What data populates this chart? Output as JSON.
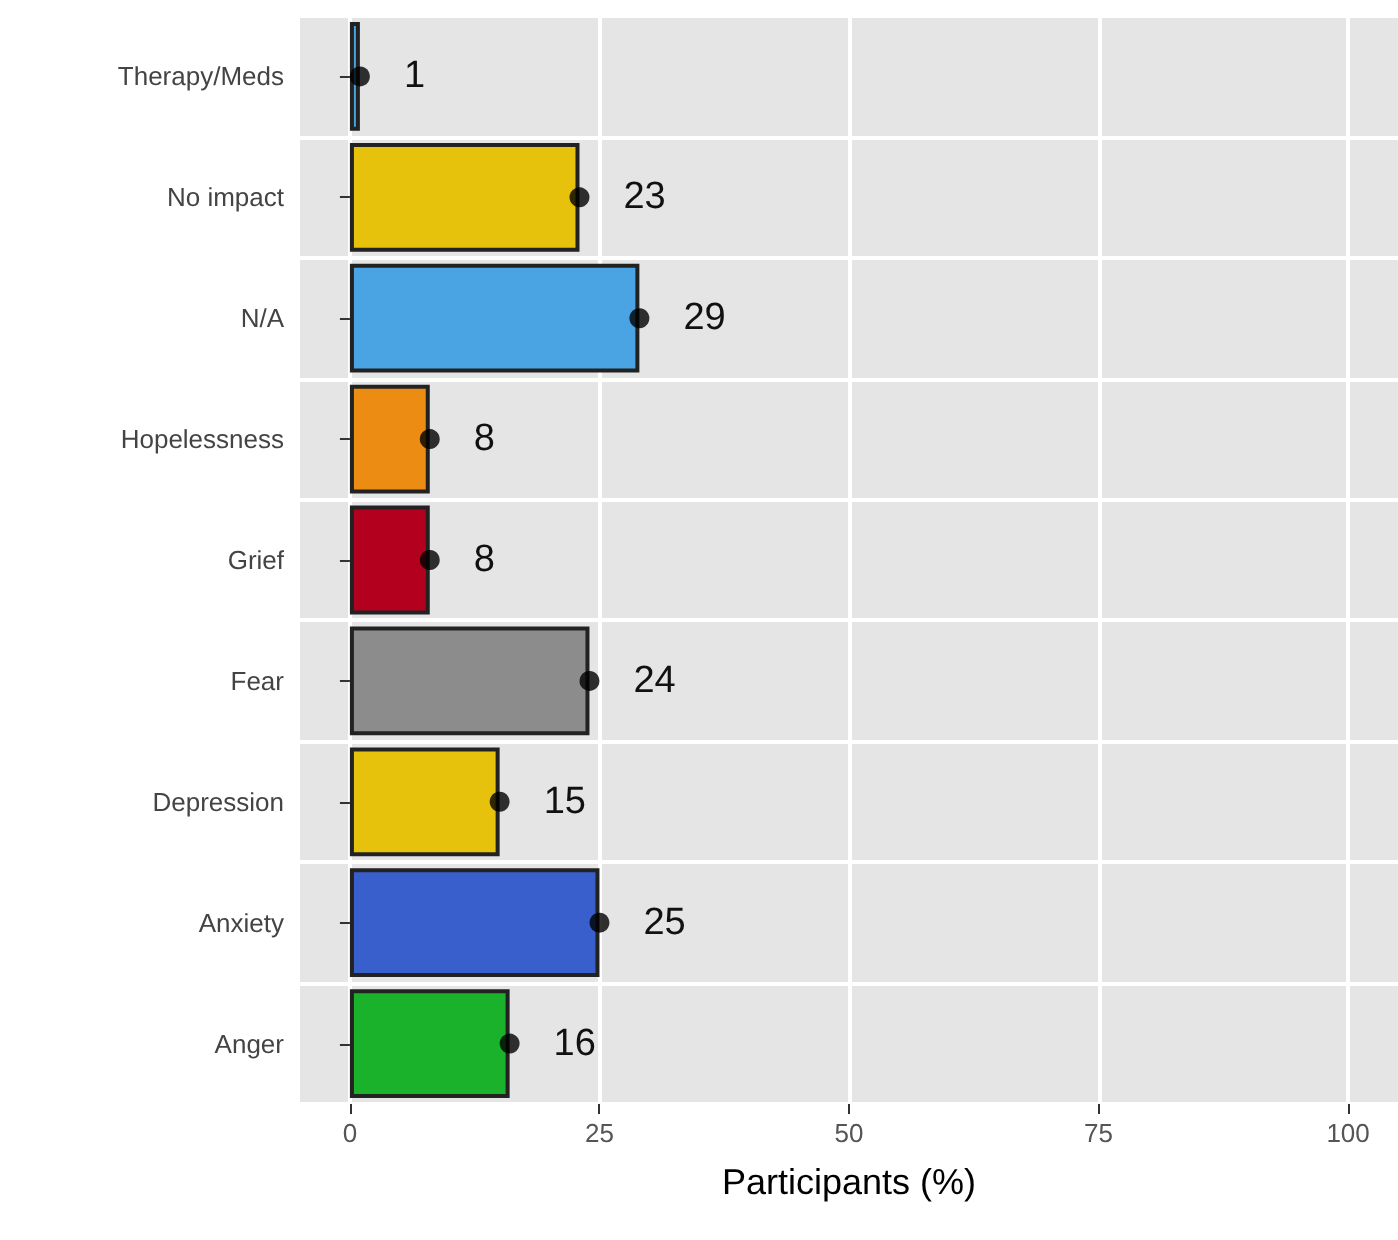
{
  "chart_data": {
    "type": "bar",
    "orientation": "horizontal",
    "xlabel": "Participants (%)",
    "categories": [
      "Therapy/Meds",
      "No impact",
      "N/A",
      "Hopelessness",
      "Grief",
      "Fear",
      "Depression",
      "Anxiety",
      "Anger"
    ],
    "series": [
      {
        "values": [
          1,
          23,
          29,
          8,
          8,
          24,
          15,
          25,
          16
        ],
        "colors": [
          "#4aa3df",
          "#e6c20c",
          "#4aa3e2",
          "#ec8c12",
          "#b3001e",
          "#8c8c8c",
          "#e6c20c",
          "#385fcc",
          "#1ab22a"
        ],
        "data_labels": true
      },
      {
        "type": "scatter",
        "x": [
          "Therapy/Meds",
          "No impact",
          "N/A",
          "Hopelessness",
          "Grief",
          "Fear",
          "Depression",
          "Anxiety",
          "Anger"
        ],
        "values": [
          1,
          23,
          29,
          8,
          8,
          24,
          15,
          25,
          16
        ],
        "color": "#000000",
        "marker": "circle"
      }
    ],
    "xlim": [
      -5,
      105
    ],
    "xticks": [
      0,
      25,
      50,
      75,
      100
    ],
    "grid": true
  }
}
